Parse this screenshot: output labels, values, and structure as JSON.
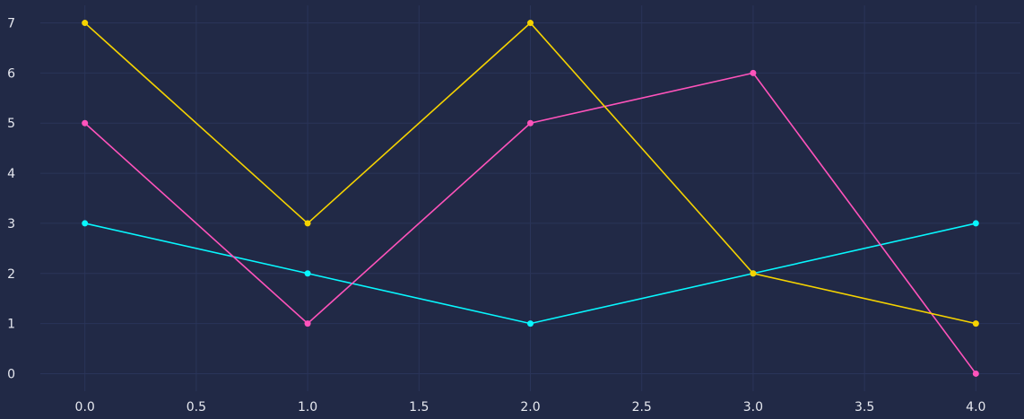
{
  "colors": {
    "background": "#212946",
    "grid": "#2a3459",
    "text": "#e6e8ef"
  },
  "chart_data": {
    "type": "line",
    "title": "",
    "xlabel": "",
    "ylabel": "",
    "xlim": [
      -0.2,
      4.2
    ],
    "ylim": [
      -0.35,
      7.35
    ],
    "grid": true,
    "legend": "none",
    "x_ticks": [
      0.0,
      0.5,
      1.0,
      1.5,
      2.0,
      2.5,
      3.0,
      3.5,
      4.0
    ],
    "x_tick_labels": [
      "0.0",
      "0.5",
      "1.0",
      "1.5",
      "2.0",
      "2.5",
      "3.0",
      "3.5",
      "4.0"
    ],
    "y_ticks": [
      0,
      1,
      2,
      3,
      4,
      5,
      6,
      7
    ],
    "y_tick_labels": [
      "0",
      "1",
      "2",
      "3",
      "4",
      "5",
      "6",
      "7"
    ],
    "x": [
      0,
      1,
      2,
      3,
      4
    ],
    "series": [
      {
        "color": "#08F7FE",
        "values": [
          3,
          2,
          1,
          2,
          3
        ]
      },
      {
        "color": "#FE53BB",
        "values": [
          5,
          1,
          5,
          6,
          0
        ]
      },
      {
        "color": "#F5D300",
        "values": [
          7,
          3,
          7,
          2,
          1
        ]
      }
    ]
  }
}
